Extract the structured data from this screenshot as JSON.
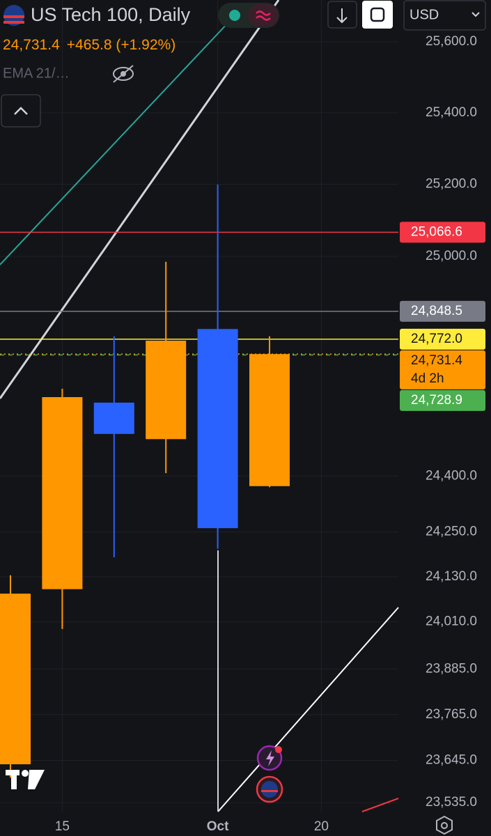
{
  "header": {
    "symbol": "US Tech 100, Daily",
    "price": "24,731.4",
    "change": "+465.8 (+1.92%)",
    "indicator": "EMA 21/…",
    "currency": "USD"
  },
  "chart_data": {
    "type": "candlestick",
    "categories": [
      null,
      "15",
      null,
      null,
      "Oct",
      null,
      "20",
      null
    ],
    "open": [
      23635,
      24097,
      24599,
      24500,
      24800,
      24373,
      null,
      null
    ],
    "high": [
      24134,
      24637,
      24780,
      24985,
      25199,
      24780,
      null,
      null
    ],
    "low": [
      23600,
      23991,
      24182,
      24408,
      24205,
      24370,
      null,
      null
    ],
    "close": [
      24085,
      24614,
      24514,
      24768,
      24260,
      24731.4,
      null,
      null
    ],
    "up_color": "#ff9800",
    "down_color": "#2962ff",
    "log_scale": true,
    "grid": true,
    "ylim": [
      23511.6,
      25718.6
    ],
    "yticks": [
      {
        "value": 25600,
        "label": "25,600.0"
      },
      {
        "value": 25400,
        "label": "25,400.0"
      },
      {
        "value": 25200,
        "label": "25,200.0"
      },
      {
        "value": 25000,
        "label": "25,000.0"
      },
      {
        "value": 24400,
        "label": "24,400.0"
      },
      {
        "value": 24250,
        "label": "24,250.0"
      },
      {
        "value": 24130,
        "label": "24,130.0"
      },
      {
        "value": 24010,
        "label": "24,010.0"
      },
      {
        "value": 23885,
        "label": "23,885.0"
      },
      {
        "value": 23765,
        "label": "23,765.0"
      },
      {
        "value": 23645,
        "label": "23,645.0"
      },
      {
        "value": 23535,
        "label": "23,535.0"
      }
    ],
    "price_lines": [
      {
        "value": 25066.6,
        "label": "25,066.6",
        "color": "#f23645",
        "text_color": "#ffffff",
        "style": "solid"
      },
      {
        "value": 24848.5,
        "label": "24,848.5",
        "color": "#787b86",
        "text_color": "#ffffff",
        "style": "solid"
      },
      {
        "value": 24772.0,
        "label": "24,772.0",
        "color": "#ffeb3b",
        "text_color": "#131722",
        "style": "solid"
      },
      {
        "value": 24731.4,
        "label": "24,731.4",
        "countdown": "4d 2h",
        "color": "#ff9800",
        "text_color": "#131722",
        "style": "dotted"
      },
      {
        "value": 24728.9,
        "label": "24,728.9",
        "color": "#4caf50",
        "text_color": "#ffffff",
        "style": "dashed"
      }
    ]
  }
}
